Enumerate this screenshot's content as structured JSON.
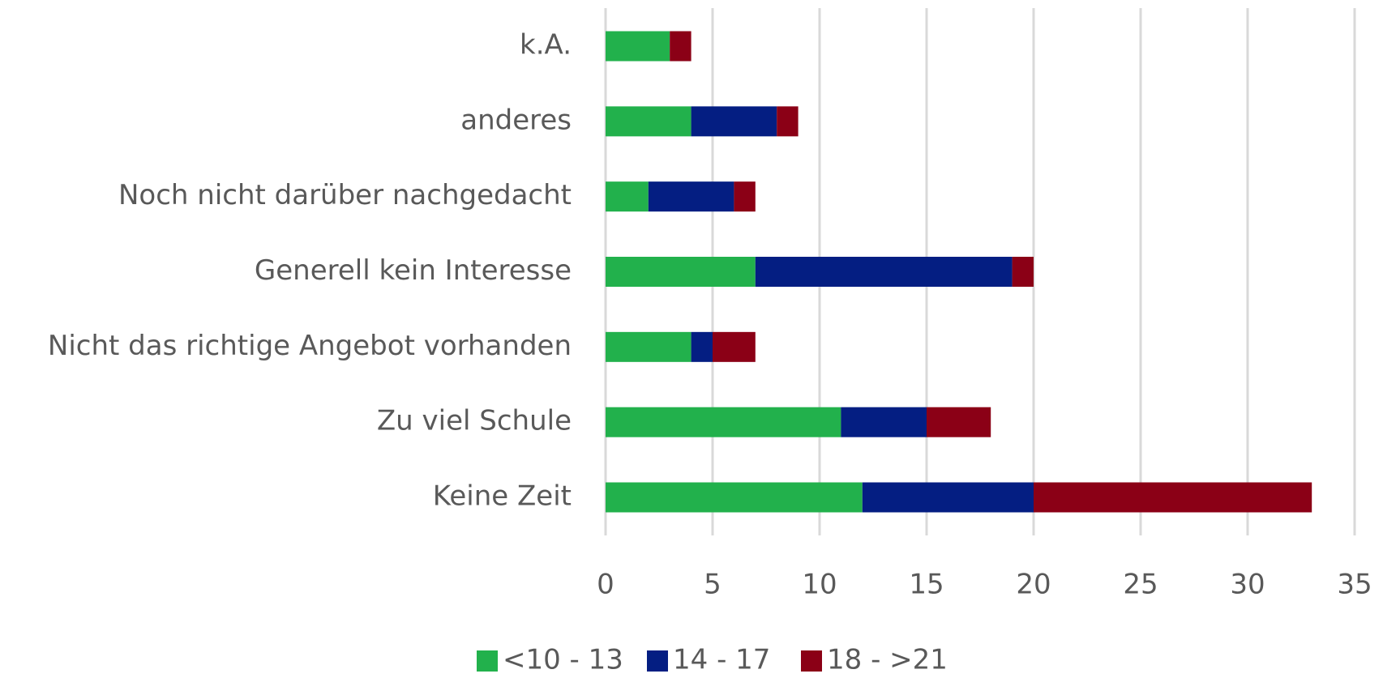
{
  "chart_data": {
    "type": "stacked_bar_horizontal",
    "categories": [
      "k.A.",
      "anderes",
      "Noch nicht darüber nachgedacht",
      "Generell kein Interesse",
      "Nicht das richtige Angebot vorhanden",
      "Zu viel Schule",
      "Keine Zeit"
    ],
    "series": [
      {
        "name": "<10 - 13",
        "color": "#22b14c",
        "values": [
          3,
          4,
          2,
          7,
          4,
          11,
          12
        ]
      },
      {
        "name": "14 - 17",
        "color": "#041e82",
        "values": [
          0,
          4,
          4,
          12,
          1,
          4,
          8
        ]
      },
      {
        "name": "18 - >21",
        "color": "#8b0016",
        "values": [
          1,
          1,
          1,
          1,
          2,
          3,
          13
        ]
      }
    ],
    "xlim": [
      0,
      35
    ],
    "xticks": [
      0,
      5,
      10,
      15,
      20,
      25,
      30,
      35
    ],
    "grid": true,
    "legend": "bottom"
  }
}
